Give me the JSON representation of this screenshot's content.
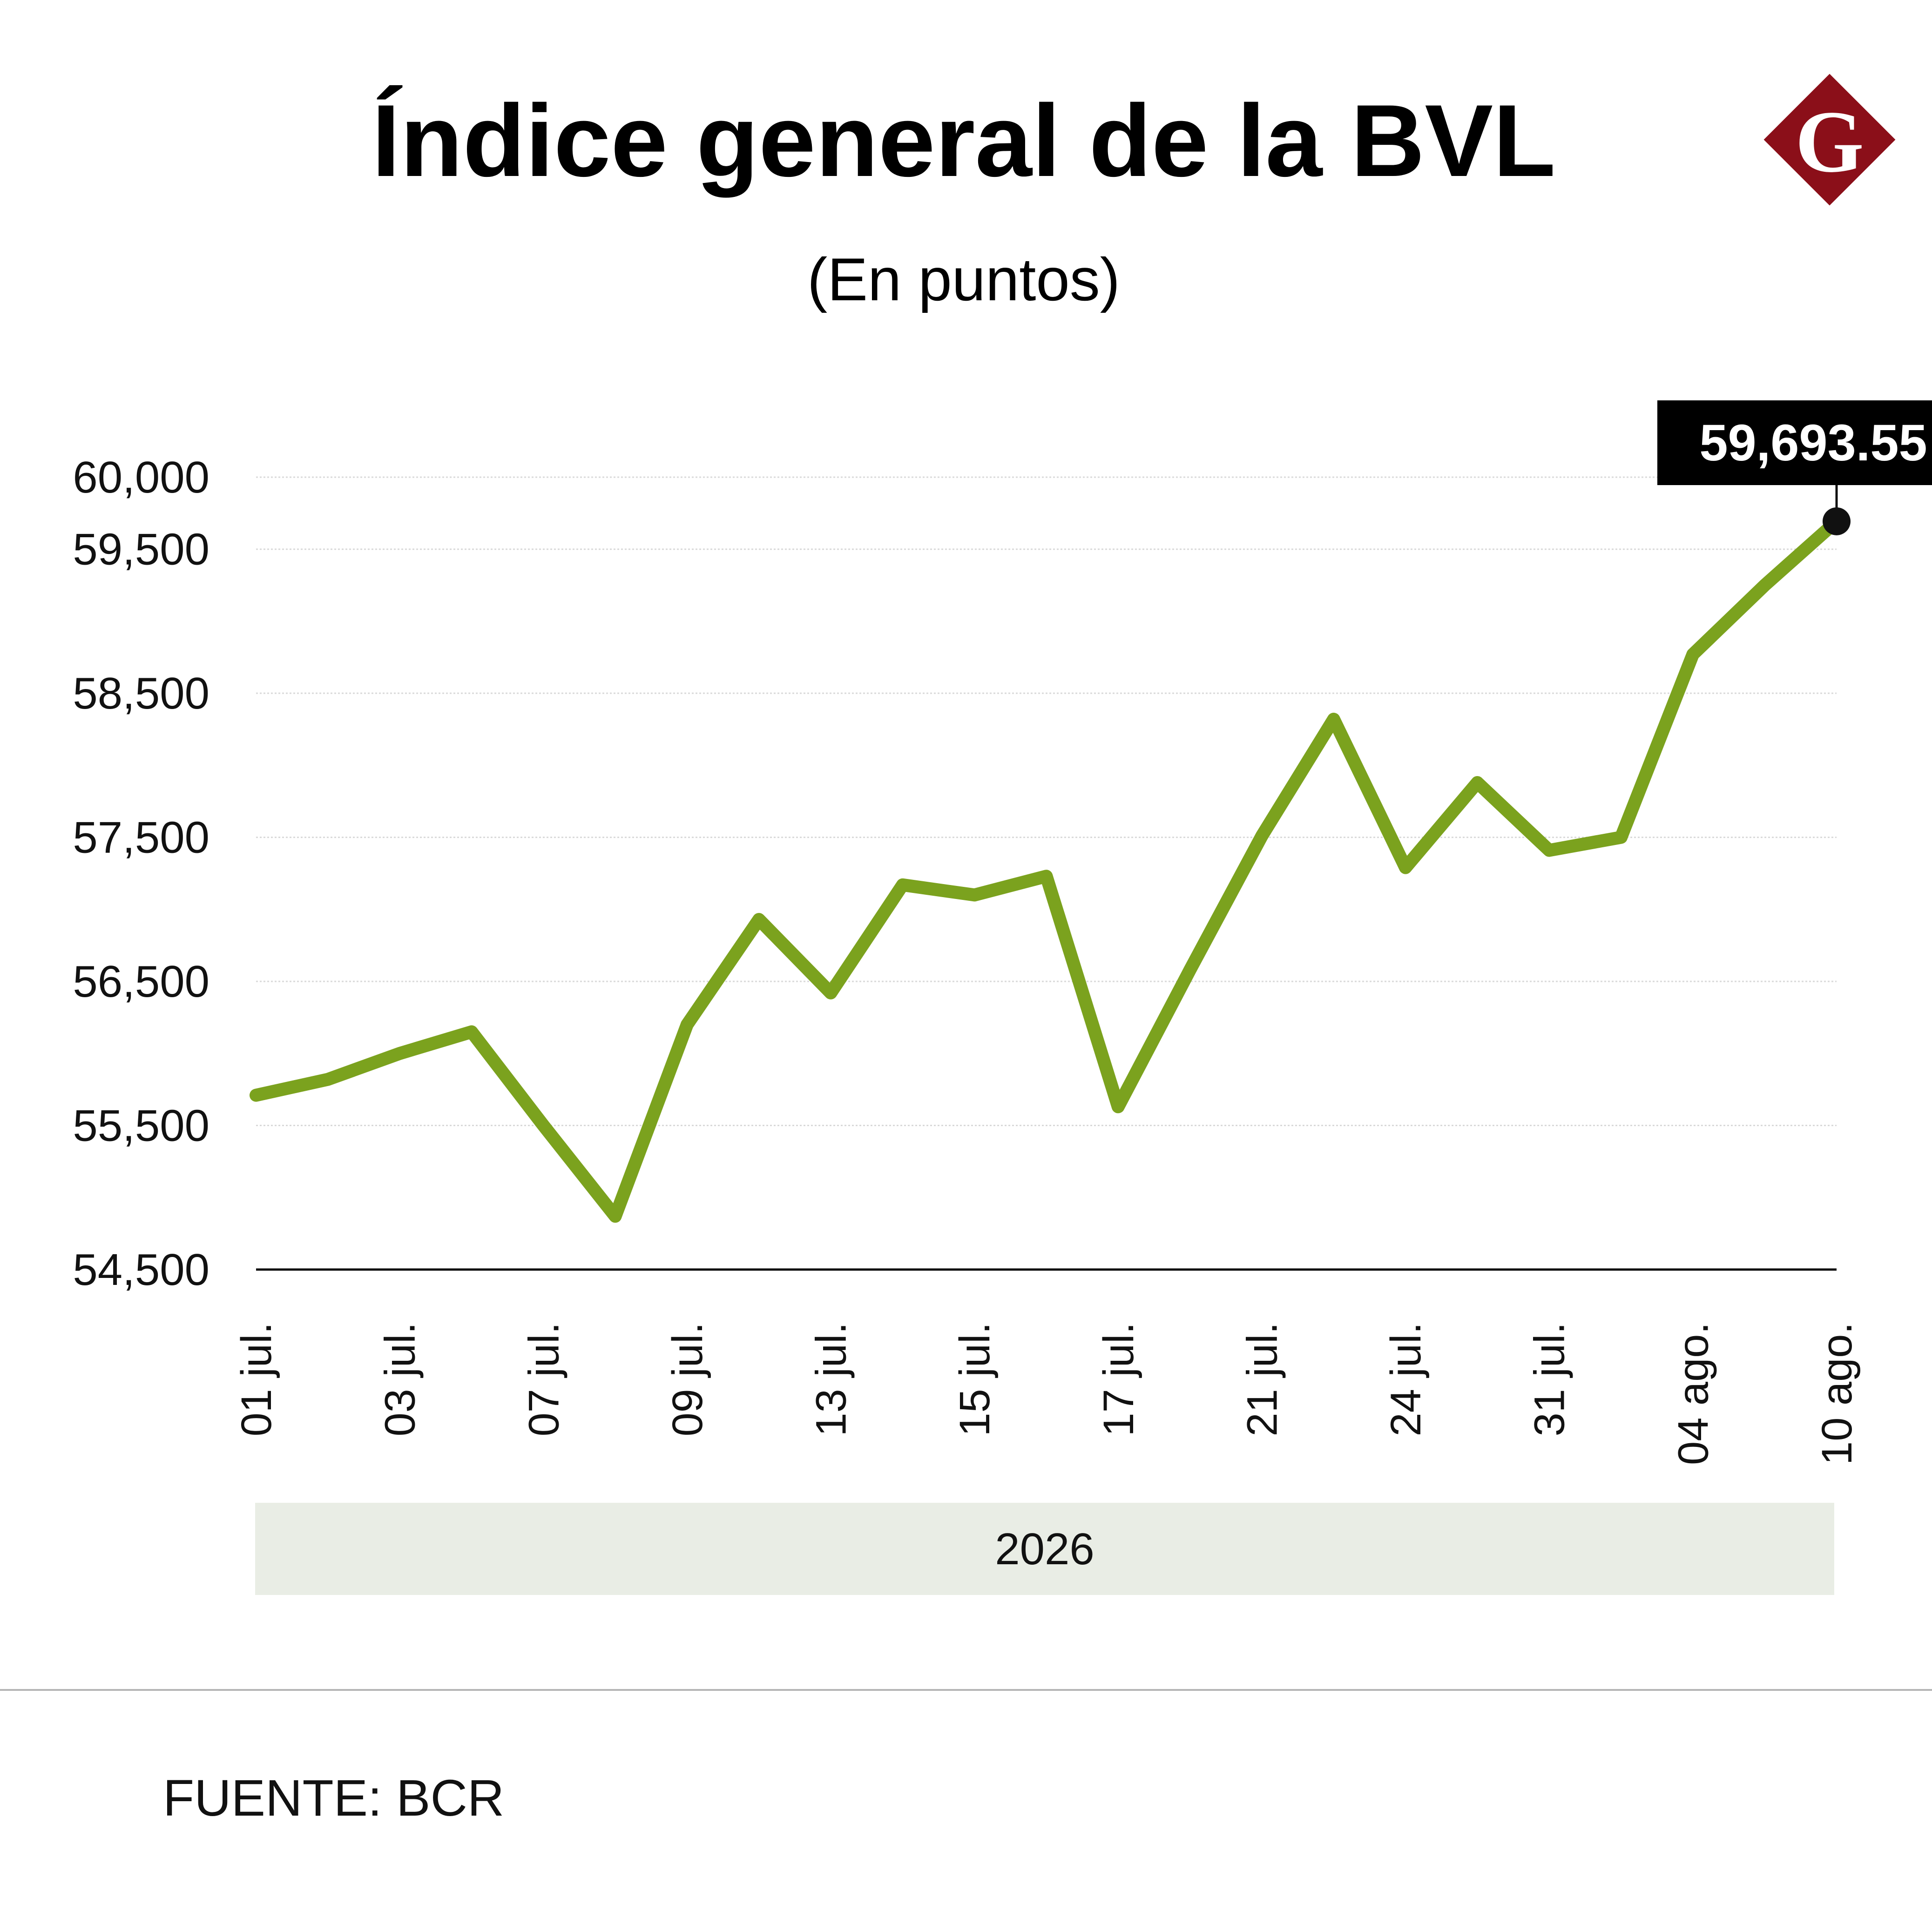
{
  "chart_data": {
    "type": "line",
    "title": "Índice general de la BVL",
    "subtitle": "(En puntos)",
    "x": [
      "01 jul.",
      "",
      "03 jul.",
      "",
      "07 jul.",
      "",
      "09 jul.",
      "",
      "13 jul.",
      "",
      "15 jul.",
      "",
      "17 jul.",
      "",
      "21 jul.",
      "",
      "24 jul.",
      "",
      "31 jul.",
      "",
      "04 ago.",
      "",
      "10 ago."
    ],
    "x_tick_labels": [
      "01 jul.",
      "03 jul.",
      "07 jul.",
      "09 jul.",
      "13 jul.",
      "15 jul.",
      "17 jul.",
      "21 jul.",
      "24 jul.",
      "31 jul.",
      "04 ago.",
      "10 ago."
    ],
    "series": [
      {
        "values": [
          55710,
          55820,
          56000,
          56150,
          55500,
          54870,
          56200,
          56930,
          56420,
          57170,
          57100,
          57230,
          55630,
          56580,
          57510,
          58320,
          57290,
          57880,
          57410,
          57500,
          58770,
          59250,
          59693.55
        ]
      }
    ],
    "y_ticks": [
      "60,000",
      "59,500",
      "58,500",
      "57,500",
      "56,500",
      "55,500",
      "54,500"
    ],
    "y_tick_values": [
      60000,
      59500,
      58500,
      57500,
      56500,
      55500,
      54500
    ],
    "ylim": [
      54500,
      60000
    ],
    "grid": true,
    "year_band": "2026",
    "callout": "59,693.55",
    "line_color": "#7ba21e",
    "source": "FUENTE: BCR"
  },
  "logo": {
    "letter": "G",
    "color": "#8b0f19"
  }
}
